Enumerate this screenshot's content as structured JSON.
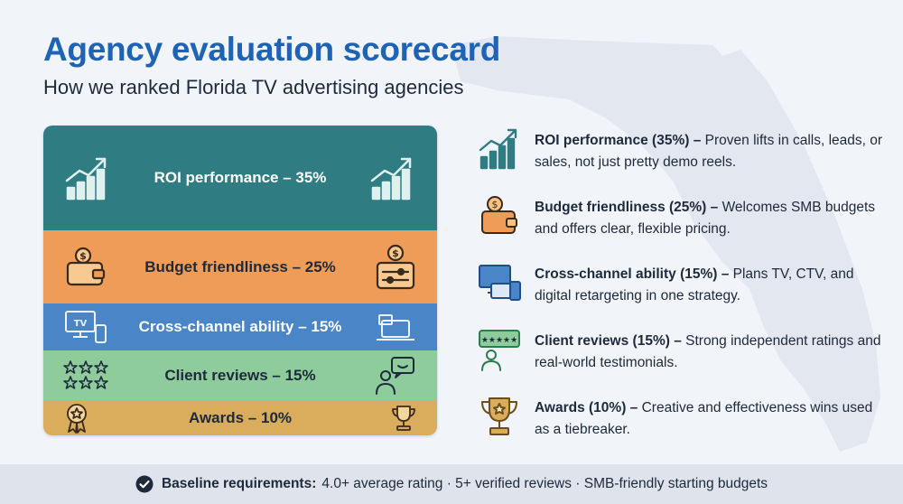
{
  "header": {
    "title": "Agency evaluation scorecard",
    "subtitle": "How we ranked Florida TV advertising agencies"
  },
  "colors": {
    "title": "#1f63b5",
    "roi": "#2f7d82",
    "budget": "#ee9c57",
    "cross_channel": "#4a86c7",
    "reviews": "#8fcc9c",
    "awards": "#d9ad5c",
    "footer_bg": "#dfe4ec"
  },
  "scorecard": {
    "bars": [
      {
        "label": "ROI performance – 35%",
        "weight": 35,
        "icon_left": "bar-chart-up-icon",
        "icon_right": "bar-chart-up-icon"
      },
      {
        "label": "Budget friendliness – 25%",
        "weight": 25,
        "icon_left": "wallet-coin-icon",
        "icon_right": "coin-sliders-icon"
      },
      {
        "label": "Cross-channel ability – 15%",
        "weight": 15,
        "icon_left": "tv-phone-icon",
        "icon_right": "laptop-icon"
      },
      {
        "label": "Client reviews – 15%",
        "weight": 15,
        "icon_left": "six-stars-icon",
        "icon_right": "person-chat-icon"
      },
      {
        "label": "Awards – 10%",
        "weight": 10,
        "icon_left": "medal-icon",
        "icon_right": "trophy-icon"
      }
    ]
  },
  "criteria": [
    {
      "title": "ROI performance (35%) –",
      "desc": " Proven lifts in calls, leads, or sales, not just pretty demo reels.",
      "icon": "bar-chart-up-icon"
    },
    {
      "title": "Budget friendliness (25%) –",
      "desc": " Welcomes SMB budgets and offers clear, flexible pricing.",
      "icon": "wallet-coin-icon"
    },
    {
      "title": "Cross-channel ability (15%) –",
      "desc": " Plans TV, CTV, and digital retargeting in one strategy.",
      "icon": "devices-icon"
    },
    {
      "title": "Client reviews (15%) –",
      "desc": " Strong independent ratings and real-world testimonials.",
      "icon": "review-person-icon"
    },
    {
      "title": "Awards (10%) –",
      "desc": " Creative and effectiveness wins used as a tiebreaker.",
      "icon": "trophy-icon"
    }
  ],
  "footer": {
    "label": "Baseline requirements:",
    "text": "4.0+ average rating · 5+ verified reviews · SMB-friendly starting budgets"
  }
}
